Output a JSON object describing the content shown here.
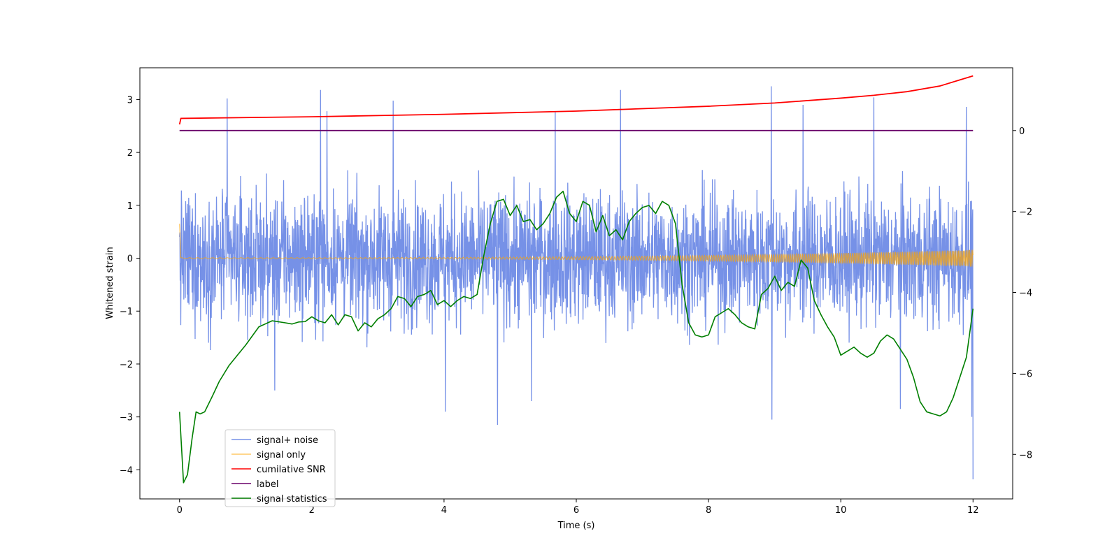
{
  "chart_data": {
    "type": "line",
    "title": "",
    "xlabel": "Time (s)",
    "ylabel": "Whitened strain",
    "ylabel_right": "",
    "xlim": [
      -0.6,
      12.6
    ],
    "ylim": [
      -4.55,
      3.6
    ],
    "ylim_right": [
      -9.1,
      1.55
    ],
    "xticks": [
      0,
      2,
      4,
      6,
      8,
      10,
      12
    ],
    "yticks": [
      -4,
      -3,
      -2,
      -1,
      0,
      1,
      2,
      3
    ],
    "yticks_right": [
      -8,
      -6,
      -4,
      -2,
      0
    ],
    "legend_position": "lower-left",
    "series": [
      {
        "name": "signal+ noise",
        "axis": "left",
        "color": "#6f8be6",
        "description": "dense noisy whitened strain, duration 12 s",
        "amplitude_rms": 0.62,
        "range_min": -4.2,
        "range_max": 3.25,
        "spikes": [
          {
            "t": 0.72,
            "v": 3.02
          },
          {
            "t": 2.13,
            "v": 3.18
          },
          {
            "t": 2.23,
            "v": 2.78
          },
          {
            "t": 3.23,
            "v": 2.98
          },
          {
            "t": 4.81,
            "v": -3.15
          },
          {
            "t": 5.68,
            "v": 2.76
          },
          {
            "t": 6.67,
            "v": 3.18
          },
          {
            "t": 8.95,
            "v": 3.25
          },
          {
            "t": 8.96,
            "v": -3.05
          },
          {
            "t": 9.43,
            "v": 2.9
          },
          {
            "t": 10.5,
            "v": 3.04
          },
          {
            "t": 10.9,
            "v": -2.85
          },
          {
            "t": 11.9,
            "v": 2.86
          },
          {
            "t": 11.98,
            "v": -3.0
          },
          {
            "t": 12.0,
            "v": -4.18
          },
          {
            "t": 1.44,
            "v": -2.5
          },
          {
            "t": 4.02,
            "v": -2.9
          },
          {
            "t": 5.32,
            "v": -2.7
          }
        ]
      },
      {
        "name": "signal only",
        "axis": "left",
        "color": "#ffa500",
        "description": "chirp with amplitude growing toward merger at 12 s",
        "t_start": 0.0,
        "t_end": 12.0,
        "amp_start": 0.01,
        "amp_end": 0.16,
        "initial_spike": 0.65
      },
      {
        "name": "cumilative SNR",
        "axis": "right",
        "color": "#ff0000",
        "x": [
          0.0,
          0.02,
          1.0,
          2.0,
          3.0,
          4.0,
          5.0,
          6.0,
          7.0,
          8.0,
          9.0,
          10.0,
          10.5,
          11.0,
          11.5,
          11.8,
          12.0
        ],
        "values": [
          0.15,
          0.3,
          0.32,
          0.34,
          0.37,
          0.4,
          0.44,
          0.48,
          0.54,
          0.6,
          0.68,
          0.8,
          0.87,
          0.96,
          1.1,
          1.25,
          1.35
        ]
      },
      {
        "name": "label",
        "axis": "right",
        "color": "#6a006a",
        "x": [
          0.0,
          12.0
        ],
        "values": [
          0.0,
          0.0
        ]
      },
      {
        "name": "signal statistics",
        "axis": "right",
        "color": "#007f00",
        "x": [
          0.0,
          0.06,
          0.12,
          0.19,
          0.25,
          0.31,
          0.38,
          0.5,
          0.6,
          0.75,
          0.85,
          1.0,
          1.2,
          1.4,
          1.6,
          1.7,
          1.8,
          1.9,
          2.0,
          2.1,
          2.2,
          2.3,
          2.4,
          2.5,
          2.6,
          2.7,
          2.8,
          2.9,
          3.0,
          3.1,
          3.2,
          3.3,
          3.4,
          3.5,
          3.6,
          3.7,
          3.8,
          3.9,
          4.0,
          4.1,
          4.2,
          4.3,
          4.4,
          4.5,
          4.6,
          4.7,
          4.8,
          4.9,
          5.0,
          5.1,
          5.2,
          5.3,
          5.4,
          5.5,
          5.6,
          5.7,
          5.8,
          5.9,
          6.0,
          6.1,
          6.2,
          6.3,
          6.4,
          6.5,
          6.6,
          6.7,
          6.8,
          6.9,
          7.0,
          7.1,
          7.2,
          7.3,
          7.4,
          7.5,
          7.6,
          7.7,
          7.8,
          7.9,
          8.0,
          8.1,
          8.2,
          8.3,
          8.4,
          8.5,
          8.6,
          8.7,
          8.8,
          8.9,
          9.0,
          9.1,
          9.2,
          9.3,
          9.4,
          9.5,
          9.6,
          9.7,
          9.8,
          9.9,
          10.0,
          10.1,
          10.2,
          10.3,
          10.4,
          10.5,
          10.6,
          10.7,
          10.8,
          10.9,
          11.0,
          11.1,
          11.2,
          11.3,
          11.4,
          11.5,
          11.6,
          11.7,
          11.8,
          11.9,
          12.0
        ],
        "values": [
          -6.95,
          -8.7,
          -8.5,
          -7.6,
          -6.95,
          -7.0,
          -6.95,
          -6.55,
          -6.2,
          -5.8,
          -5.6,
          -5.3,
          -4.85,
          -4.7,
          -4.75,
          -4.78,
          -4.73,
          -4.72,
          -4.6,
          -4.7,
          -4.75,
          -4.55,
          -4.8,
          -4.55,
          -4.6,
          -4.95,
          -4.75,
          -4.85,
          -4.65,
          -4.55,
          -4.4,
          -4.1,
          -4.15,
          -4.35,
          -4.1,
          -4.05,
          -3.95,
          -4.3,
          -4.2,
          -4.35,
          -4.2,
          -4.1,
          -4.15,
          -4.05,
          -3.1,
          -2.3,
          -1.75,
          -1.7,
          -2.1,
          -1.85,
          -2.25,
          -2.2,
          -2.45,
          -2.3,
          -2.05,
          -1.65,
          -1.5,
          -2.05,
          -2.25,
          -1.75,
          -1.85,
          -2.5,
          -2.1,
          -2.6,
          -2.45,
          -2.7,
          -2.25,
          -2.05,
          -1.9,
          -1.85,
          -2.05,
          -1.75,
          -1.85,
          -2.3,
          -3.8,
          -4.75,
          -5.05,
          -5.1,
          -5.05,
          -4.6,
          -4.5,
          -4.4,
          -4.55,
          -4.75,
          -4.85,
          -4.9,
          -4.05,
          -3.9,
          -3.6,
          -3.95,
          -3.75,
          -3.85,
          -3.2,
          -3.4,
          -4.2,
          -4.55,
          -4.85,
          -5.1,
          -5.55,
          -5.45,
          -5.35,
          -5.5,
          -5.6,
          -5.5,
          -5.2,
          -5.05,
          -5.15,
          -5.4,
          -5.65,
          -6.1,
          -6.7,
          -6.95,
          -7.0,
          -7.05,
          -6.95,
          -6.6,
          -6.1,
          -5.6,
          -4.4
        ]
      }
    ]
  }
}
